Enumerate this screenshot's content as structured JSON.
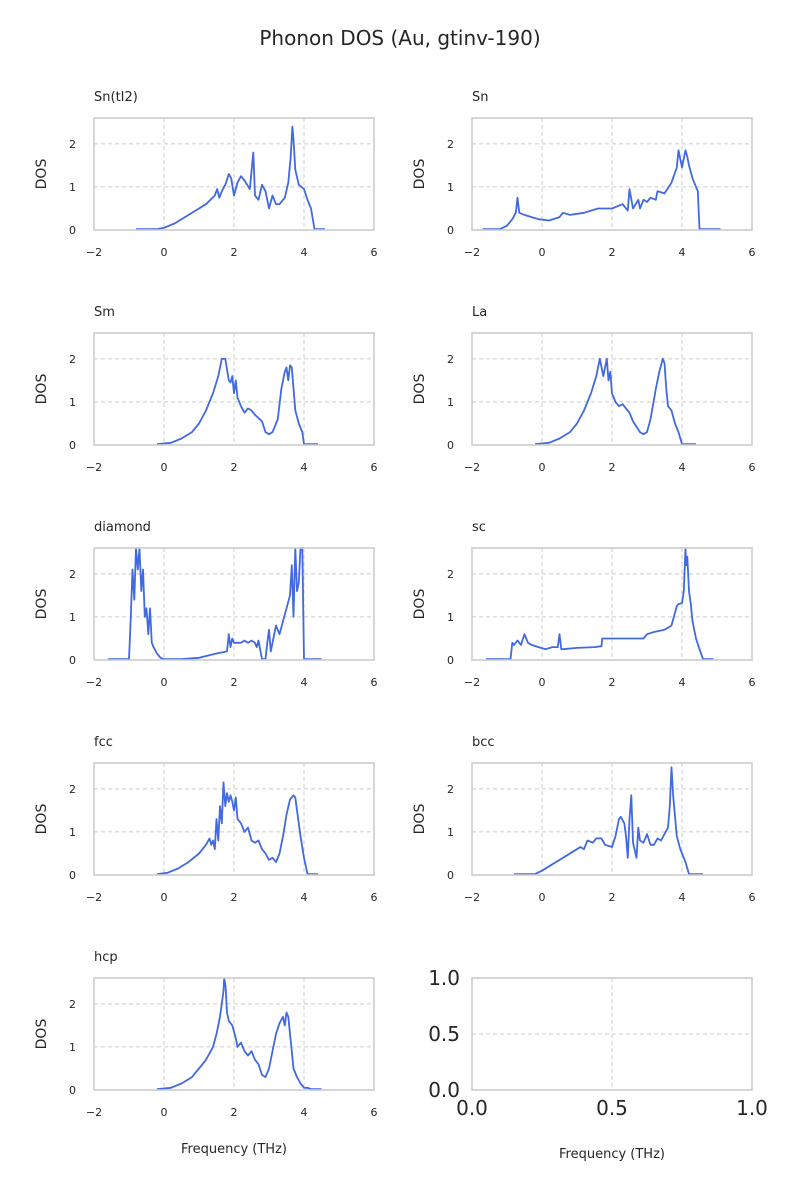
{
  "figure": {
    "suptitle": "Phonon DOS (Au, gtinv-190)",
    "line_color": "#4169e1",
    "grid": true,
    "grid_style": "dashed"
  },
  "chart_data": [
    {
      "type": "line",
      "title": "Sn(tI2)",
      "xlabel": "",
      "ylabel": "DOS",
      "xlim": [
        -2,
        6
      ],
      "ylim": [
        0,
        2.6
      ],
      "xticks": [
        "−2",
        "0",
        "2",
        "4",
        "6"
      ],
      "yticks": [
        "0",
        "1",
        "2"
      ],
      "series": [
        {
          "x": [
            -0.8,
            -0.2,
            0.0,
            0.3,
            0.6,
            0.9,
            1.2,
            1.45,
            1.52,
            1.58,
            1.65,
            1.75,
            1.85,
            1.92,
            2.0,
            2.1,
            2.2,
            2.3,
            2.45,
            2.55,
            2.6,
            2.7,
            2.8,
            2.9,
            3.0,
            3.1,
            3.2,
            3.3,
            3.45,
            3.55,
            3.62,
            3.67,
            3.7,
            3.75,
            3.85,
            4.0,
            4.1,
            4.2,
            4.3,
            4.6
          ],
          "y": [
            0.02,
            0.02,
            0.05,
            0.15,
            0.3,
            0.45,
            0.6,
            0.8,
            0.95,
            0.75,
            0.9,
            1.05,
            1.3,
            1.2,
            0.8,
            1.1,
            1.25,
            1.15,
            0.95,
            1.8,
            0.8,
            0.7,
            1.05,
            0.9,
            0.5,
            0.8,
            0.6,
            0.6,
            0.75,
            1.1,
            1.7,
            2.4,
            2.1,
            1.4,
            1.05,
            0.95,
            0.7,
            0.5,
            0.02,
            0.02
          ]
        }
      ]
    },
    {
      "type": "line",
      "title": "Sn",
      "xlabel": "",
      "ylabel": "DOS",
      "xlim": [
        -2,
        6
      ],
      "ylim": [
        0,
        2.6
      ],
      "xticks": [
        "−2",
        "0",
        "2",
        "4",
        "6"
      ],
      "yticks": [
        "0",
        "1",
        "2"
      ],
      "series": [
        {
          "x": [
            -1.7,
            -1.2,
            -1.0,
            -0.85,
            -0.75,
            -0.7,
            -0.65,
            -0.5,
            -0.3,
            -0.1,
            0.2,
            0.5,
            0.6,
            0.8,
            1.2,
            1.6,
            2.0,
            2.3,
            2.45,
            2.5,
            2.6,
            2.75,
            2.8,
            2.9,
            3.0,
            3.1,
            3.25,
            3.3,
            3.5,
            3.7,
            3.85,
            3.9,
            4.0,
            4.1,
            4.15,
            4.2,
            4.3,
            4.45,
            4.5,
            5.1
          ],
          "y": [
            0.02,
            0.02,
            0.1,
            0.25,
            0.4,
            0.75,
            0.4,
            0.35,
            0.3,
            0.25,
            0.22,
            0.3,
            0.4,
            0.35,
            0.4,
            0.5,
            0.5,
            0.6,
            0.45,
            0.95,
            0.5,
            0.7,
            0.5,
            0.7,
            0.65,
            0.75,
            0.7,
            0.9,
            0.85,
            1.1,
            1.45,
            1.85,
            1.45,
            1.85,
            1.7,
            1.5,
            1.2,
            0.9,
            0.02,
            0.02
          ]
        }
      ]
    },
    {
      "type": "line",
      "title": "Sm",
      "xlabel": "",
      "ylabel": "DOS",
      "xlim": [
        -2,
        6
      ],
      "ylim": [
        0,
        2.6
      ],
      "xticks": [
        "−2",
        "0",
        "2",
        "4",
        "6"
      ],
      "yticks": [
        "0",
        "1",
        "2"
      ],
      "series": [
        {
          "x": [
            -0.2,
            0.2,
            0.5,
            0.8,
            1.0,
            1.2,
            1.4,
            1.55,
            1.65,
            1.75,
            1.85,
            1.9,
            1.95,
            2.0,
            2.05,
            2.1,
            2.2,
            2.3,
            2.4,
            2.5,
            2.6,
            2.8,
            2.9,
            3.0,
            3.1,
            3.25,
            3.35,
            3.45,
            3.5,
            3.55,
            3.6,
            3.65,
            3.75,
            3.85,
            3.95,
            4.0,
            4.2,
            4.4
          ],
          "y": [
            0.02,
            0.05,
            0.15,
            0.3,
            0.5,
            0.8,
            1.2,
            1.6,
            2.0,
            2.0,
            1.5,
            1.45,
            1.6,
            1.2,
            1.5,
            1.1,
            0.9,
            0.75,
            0.85,
            0.8,
            0.7,
            0.55,
            0.3,
            0.25,
            0.3,
            0.6,
            1.3,
            1.7,
            1.8,
            1.5,
            1.85,
            1.8,
            0.8,
            0.5,
            0.3,
            0.02,
            0.02,
            0.02
          ]
        }
      ]
    },
    {
      "type": "line",
      "title": "La",
      "xlabel": "",
      "ylabel": "DOS",
      "xlim": [
        -2,
        6
      ],
      "ylim": [
        0,
        2.6
      ],
      "xticks": [
        "−2",
        "0",
        "2",
        "4",
        "6"
      ],
      "yticks": [
        "0",
        "1",
        "2"
      ],
      "series": [
        {
          "x": [
            -0.2,
            0.2,
            0.5,
            0.8,
            1.0,
            1.2,
            1.4,
            1.55,
            1.65,
            1.75,
            1.85,
            1.9,
            1.95,
            2.0,
            2.1,
            2.2,
            2.3,
            2.4,
            2.5,
            2.6,
            2.8,
            2.9,
            3.0,
            3.1,
            3.25,
            3.35,
            3.45,
            3.5,
            3.55,
            3.6,
            3.7,
            3.8,
            3.9,
            4.0,
            4.1,
            4.4
          ],
          "y": [
            0.02,
            0.05,
            0.15,
            0.3,
            0.5,
            0.8,
            1.2,
            1.6,
            2.0,
            1.6,
            2.0,
            1.5,
            1.7,
            1.2,
            1.0,
            0.9,
            0.95,
            0.85,
            0.75,
            0.55,
            0.3,
            0.25,
            0.3,
            0.6,
            1.3,
            1.7,
            2.0,
            1.9,
            1.3,
            0.9,
            0.8,
            0.5,
            0.3,
            0.02,
            0.02,
            0.02
          ]
        }
      ]
    },
    {
      "type": "line",
      "title": "diamond",
      "xlabel": "",
      "ylabel": "DOS",
      "xlim": [
        -2,
        6
      ],
      "ylim": [
        0,
        2.6
      ],
      "xticks": [
        "−2",
        "0",
        "2",
        "4",
        "6"
      ],
      "yticks": [
        "0",
        "1",
        "2"
      ],
      "series": [
        {
          "x": [
            -1.6,
            -1.0,
            -0.95,
            -0.9,
            -0.85,
            -0.8,
            -0.75,
            -0.7,
            -0.65,
            -0.6,
            -0.55,
            -0.5,
            -0.45,
            -0.4,
            -0.35,
            -0.3,
            -0.2,
            -0.1,
            0.0,
            0.2,
            0.5,
            1.0,
            1.5,
            1.8,
            1.85,
            1.9,
            1.95,
            2.0,
            2.1,
            2.2,
            2.3,
            2.4,
            2.5,
            2.6,
            2.65,
            2.7,
            2.8,
            2.9,
            2.95,
            3.0,
            3.05,
            3.1,
            3.2,
            3.3,
            3.4,
            3.5,
            3.6,
            3.65,
            3.7,
            3.75,
            3.8,
            3.85,
            3.9,
            3.95,
            4.0,
            4.5
          ],
          "y": [
            0.02,
            0.02,
            1.0,
            2.1,
            1.4,
            2.6,
            2.1,
            2.6,
            1.6,
            2.1,
            1.0,
            1.2,
            0.6,
            1.2,
            0.4,
            0.3,
            0.15,
            0.05,
            0.02,
            0.02,
            0.02,
            0.05,
            0.15,
            0.2,
            0.6,
            0.3,
            0.5,
            0.4,
            0.4,
            0.4,
            0.45,
            0.4,
            0.45,
            0.4,
            0.3,
            0.45,
            0.02,
            0.02,
            0.4,
            0.7,
            0.2,
            0.4,
            0.8,
            0.6,
            0.9,
            1.2,
            1.5,
            2.2,
            1.0,
            2.6,
            1.6,
            1.8,
            2.6,
            2.6,
            0.02,
            0.02
          ]
        }
      ]
    },
    {
      "type": "line",
      "title": "sc",
      "xlabel": "",
      "ylabel": "DOS",
      "xlim": [
        -2,
        6
      ],
      "ylim": [
        0,
        2.6
      ],
      "xticks": [
        "−2",
        "0",
        "2",
        "4",
        "6"
      ],
      "yticks": [
        "0",
        "1",
        "2"
      ],
      "series": [
        {
          "x": [
            -1.6,
            -0.9,
            -0.85,
            -0.8,
            -0.7,
            -0.6,
            -0.5,
            -0.4,
            -0.3,
            -0.1,
            0.1,
            0.3,
            0.45,
            0.5,
            0.55,
            0.6,
            1.0,
            1.5,
            1.7,
            1.72,
            2.0,
            2.5,
            2.9,
            3.0,
            3.2,
            3.5,
            3.7,
            3.8,
            3.85,
            3.9,
            4.0,
            4.05,
            4.1,
            4.12,
            4.15,
            4.2,
            4.25,
            4.3,
            4.4,
            4.5,
            4.6,
            4.9
          ],
          "y": [
            0.02,
            0.02,
            0.4,
            0.35,
            0.45,
            0.35,
            0.6,
            0.4,
            0.35,
            0.3,
            0.25,
            0.3,
            0.3,
            0.6,
            0.25,
            0.25,
            0.28,
            0.3,
            0.32,
            0.5,
            0.5,
            0.5,
            0.5,
            0.6,
            0.65,
            0.7,
            0.8,
            1.1,
            1.25,
            1.3,
            1.32,
            1.6,
            2.6,
            2.2,
            2.4,
            1.6,
            1.3,
            0.9,
            0.5,
            0.25,
            0.02,
            0.02
          ]
        }
      ]
    },
    {
      "type": "line",
      "title": "fcc",
      "xlabel": "",
      "ylabel": "DOS",
      "xlim": [
        -2,
        6
      ],
      "ylim": [
        0,
        2.6
      ],
      "xticks": [
        "−2",
        "0",
        "2",
        "4",
        "6"
      ],
      "yticks": [
        "0",
        "1",
        "2"
      ],
      "series": [
        {
          "x": [
            -0.2,
            0.1,
            0.4,
            0.7,
            1.0,
            1.2,
            1.3,
            1.35,
            1.4,
            1.45,
            1.5,
            1.55,
            1.6,
            1.65,
            1.7,
            1.75,
            1.8,
            1.85,
            1.9,
            1.95,
            2.0,
            2.05,
            2.1,
            2.2,
            2.3,
            2.4,
            2.5,
            2.6,
            2.7,
            2.8,
            2.9,
            3.0,
            3.1,
            3.2,
            3.3,
            3.4,
            3.5,
            3.6,
            3.7,
            3.75,
            3.8,
            3.9,
            4.0,
            4.1,
            4.4
          ],
          "y": [
            0.02,
            0.05,
            0.15,
            0.3,
            0.5,
            0.7,
            0.85,
            0.7,
            0.8,
            0.6,
            1.3,
            0.8,
            1.6,
            1.2,
            2.15,
            1.6,
            1.9,
            1.7,
            1.85,
            1.7,
            1.5,
            1.8,
            1.3,
            1.2,
            1.0,
            1.1,
            0.8,
            0.75,
            0.8,
            0.6,
            0.5,
            0.35,
            0.4,
            0.3,
            0.5,
            0.9,
            1.4,
            1.75,
            1.85,
            1.8,
            1.5,
            0.9,
            0.4,
            0.02,
            0.02
          ]
        }
      ]
    },
    {
      "type": "line",
      "title": "bcc",
      "xlabel": "",
      "ylabel": "DOS",
      "xlim": [
        -2,
        6
      ],
      "ylim": [
        0,
        2.6
      ],
      "xticks": [
        "−2",
        "0",
        "2",
        "4",
        "6"
      ],
      "yticks": [
        "0",
        "1",
        "2"
      ],
      "series": [
        {
          "x": [
            -0.8,
            -0.2,
            0.0,
            0.3,
            0.6,
            0.9,
            1.1,
            1.2,
            1.3,
            1.45,
            1.55,
            1.7,
            1.8,
            2.0,
            2.1,
            2.2,
            2.25,
            2.35,
            2.4,
            2.45,
            2.5,
            2.55,
            2.6,
            2.7,
            2.75,
            2.8,
            2.9,
            3.0,
            3.1,
            3.2,
            3.3,
            3.4,
            3.5,
            3.6,
            3.65,
            3.7,
            3.75,
            3.85,
            3.95,
            4.1,
            4.2,
            4.6
          ],
          "y": [
            0.02,
            0.02,
            0.1,
            0.25,
            0.4,
            0.55,
            0.65,
            0.6,
            0.8,
            0.75,
            0.85,
            0.85,
            0.7,
            0.65,
            0.9,
            1.3,
            1.35,
            1.2,
            0.9,
            0.4,
            1.3,
            1.85,
            0.75,
            0.4,
            1.1,
            0.8,
            0.75,
            0.95,
            0.7,
            0.7,
            0.85,
            0.8,
            0.95,
            1.1,
            1.6,
            2.5,
            1.8,
            0.9,
            0.6,
            0.3,
            0.02,
            0.02
          ]
        }
      ]
    },
    {
      "type": "line",
      "title": "hcp",
      "xlabel": "Frequency (THz)",
      "ylabel": "DOS",
      "xlim": [
        -2,
        6
      ],
      "ylim": [
        0,
        2.6
      ],
      "xticks": [
        "−2",
        "0",
        "2",
        "4",
        "6"
      ],
      "yticks": [
        "0",
        "1",
        "2"
      ],
      "series": [
        {
          "x": [
            -0.2,
            0.2,
            0.5,
            0.8,
            1.0,
            1.2,
            1.4,
            1.5,
            1.6,
            1.7,
            1.72,
            1.76,
            1.8,
            1.85,
            1.95,
            2.05,
            2.1,
            2.2,
            2.3,
            2.4,
            2.5,
            2.6,
            2.7,
            2.8,
            2.9,
            3.0,
            3.1,
            3.2,
            3.3,
            3.4,
            3.45,
            3.5,
            3.55,
            3.6,
            3.65,
            3.7,
            3.8,
            3.9,
            4.0,
            4.1,
            4.2,
            4.5
          ],
          "y": [
            0.02,
            0.05,
            0.15,
            0.3,
            0.5,
            0.7,
            1.0,
            1.3,
            1.7,
            2.3,
            2.6,
            2.4,
            1.8,
            1.6,
            1.5,
            1.2,
            1.0,
            1.1,
            0.9,
            0.8,
            0.9,
            0.7,
            0.6,
            0.35,
            0.3,
            0.5,
            0.9,
            1.3,
            1.55,
            1.7,
            1.5,
            1.8,
            1.7,
            1.3,
            0.9,
            0.5,
            0.3,
            0.15,
            0.05,
            0.05,
            0.02,
            0.02
          ]
        }
      ]
    },
    {
      "type": "line",
      "title": "",
      "xlabel": "Frequency (THz)",
      "ylabel": "",
      "xlim": [
        0,
        1
      ],
      "ylim": [
        0,
        1
      ],
      "xticks": [
        "0.0",
        "0.5",
        "1.0"
      ],
      "yticks": [
        "0.0",
        "0.5",
        "1.0"
      ],
      "series": []
    }
  ]
}
